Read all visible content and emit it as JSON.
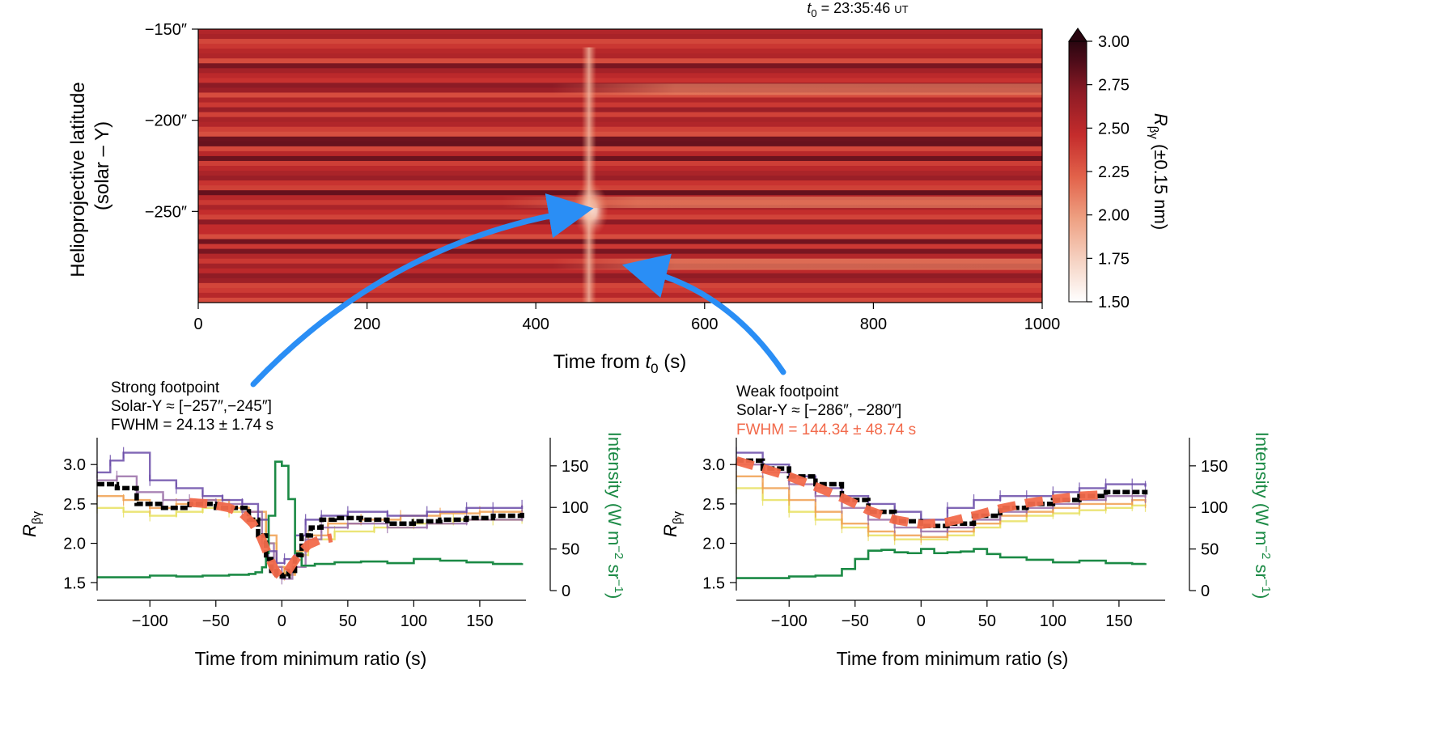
{
  "t0_label": {
    "prefix": "t",
    "sub": "0",
    "rest": " = 23:35:46 ",
    "ut": "UT"
  },
  "chart_data": [
    {
      "id": "heatmap",
      "type": "heatmap",
      "xlabel": {
        "main": "Time from ",
        "var": "t",
        "sub": "0",
        "unit": " (s)"
      },
      "ylabel": [
        "Helioprojective latitude",
        "(solar – Y)"
      ],
      "xlim": [
        0,
        1000
      ],
      "ylim": [
        -300,
        -150
      ],
      "xticks": [
        0,
        200,
        400,
        600,
        800,
        1000
      ],
      "xticklabels": [
        "0",
        "200",
        "400",
        "600",
        "800",
        "1000"
      ],
      "yticks": [
        -150,
        -200,
        -250
      ],
      "yticklabels": [
        "−150″",
        "−200″",
        "−250″"
      ],
      "colorbar": {
        "label": {
          "main": "R",
          "sub": "βγ",
          "rest": " (±0.15 nm)"
        },
        "range": [
          1.5,
          3.0
        ],
        "ticks": [
          3.0,
          2.75,
          2.5,
          2.25,
          2.0,
          1.75,
          1.5
        ],
        "ticklabels": [
          "3.00",
          "2.75",
          "2.50",
          "2.25",
          "2.00",
          "1.75",
          "1.50"
        ],
        "colors": [
          "#ffffff",
          "#f6d5c6",
          "#eea082",
          "#e2624a",
          "#c42c2c",
          "#8e1b25",
          "#4a0b18",
          "#2a0610"
        ]
      },
      "background_value": 2.55,
      "features": [
        {
          "name": "strong-footpoint-core",
          "t": 465,
          "y": -249,
          "value": 1.5
        },
        {
          "name": "bright-band-upper",
          "t_range": [
            420,
            1000
          ],
          "y": -183,
          "value": 2.0
        },
        {
          "name": "bright-band-mid",
          "t_range": [
            360,
            1000
          ],
          "y": -245,
          "value": 2.05
        },
        {
          "name": "bright-band-lower",
          "t_range": [
            420,
            1000
          ],
          "y": -279,
          "value": 2.1
        },
        {
          "name": "vertical-flash",
          "t": 463,
          "y_range": [
            -300,
            -160
          ],
          "value": 2.1
        }
      ]
    },
    {
      "id": "strong",
      "type": "line",
      "title": [
        "Strong footpoint",
        "Solar-Y ≈ [−257″,−245″]",
        "FWHM = 24.13 ± 1.74 s"
      ],
      "title_colors": [
        "#111111",
        "#111111",
        "#111111"
      ],
      "xlabel": "Time from minimum ratio (s)",
      "ylabel": {
        "main": "R",
        "sub": "βγ"
      },
      "y2label": {
        "main": "Intensity (W m",
        "sup1": "−2",
        "mid": " sr",
        "sup2": "−1",
        "end": ")"
      },
      "xlim": [
        -140,
        185
      ],
      "ylim": [
        1.4,
        3.3
      ],
      "y2lim": [
        0,
        180
      ],
      "xticks": [
        -100,
        -50,
        0,
        50,
        100,
        150
      ],
      "xticklabels": [
        "−100",
        "−50",
        "0",
        "50",
        "100",
        "150"
      ],
      "yticks": [
        1.5,
        2.0,
        2.5,
        3.0
      ],
      "yticklabels": [
        "1.5",
        "2.0",
        "2.5",
        "3.0"
      ],
      "y2ticks": [
        0,
        50,
        100,
        150
      ],
      "y2ticklabels": [
        "0",
        "50",
        "100",
        "150"
      ],
      "series": [
        {
          "name": "mean-ratio",
          "role": "ratio",
          "color": "#000000",
          "x": [
            -140,
            -125,
            -110,
            -90,
            -70,
            -50,
            -35,
            -25,
            -18,
            -12,
            -8,
            -4,
            0,
            5,
            10,
            15,
            22,
            30,
            40,
            60,
            80,
            100,
            120,
            140,
            160,
            182
          ],
          "values": [
            2.75,
            2.7,
            2.5,
            2.45,
            2.5,
            2.45,
            2.45,
            2.3,
            2.1,
            1.8,
            1.65,
            1.6,
            1.58,
            1.65,
            1.85,
            2.1,
            2.2,
            2.3,
            2.32,
            2.3,
            2.25,
            2.28,
            2.3,
            2.32,
            2.35,
            2.4
          ]
        },
        {
          "name": "pixel-purple",
          "role": "ratio",
          "color": "#6a4ba8",
          "x": [
            -140,
            -130,
            -120,
            -100,
            -80,
            -60,
            -45,
            -30,
            -18,
            -10,
            -4,
            2,
            10,
            18,
            30,
            50,
            80,
            110,
            140,
            160,
            182
          ],
          "values": [
            2.9,
            3.05,
            3.15,
            2.8,
            2.7,
            2.6,
            2.55,
            2.5,
            2.3,
            1.9,
            1.75,
            1.8,
            2.1,
            2.3,
            2.35,
            2.4,
            2.35,
            2.4,
            2.45,
            2.45,
            2.48
          ]
        },
        {
          "name": "pixel-violet",
          "role": "ratio",
          "color": "#9a6fa8",
          "x": [
            -140,
            -125,
            -110,
            -90,
            -70,
            -50,
            -30,
            -15,
            -6,
            0,
            8,
            18,
            30,
            50,
            80,
            110,
            140,
            182
          ],
          "values": [
            2.8,
            2.85,
            2.65,
            2.55,
            2.55,
            2.5,
            2.4,
            2.0,
            1.7,
            1.55,
            1.7,
            2.05,
            2.2,
            2.25,
            2.2,
            2.25,
            2.3,
            2.35
          ]
        },
        {
          "name": "pixel-orange",
          "role": "ratio",
          "color": "#f0a050",
          "x": [
            -140,
            -120,
            -100,
            -80,
            -60,
            -40,
            -25,
            -12,
            -4,
            2,
            10,
            20,
            35,
            60,
            90,
            120,
            150,
            182
          ],
          "values": [
            2.6,
            2.55,
            2.45,
            2.5,
            2.55,
            2.45,
            2.4,
            2.1,
            1.7,
            1.6,
            1.9,
            2.1,
            2.25,
            2.3,
            2.35,
            2.38,
            2.4,
            2.42
          ]
        },
        {
          "name": "pixel-yellow",
          "role": "ratio",
          "color": "#e8e060",
          "x": [
            -140,
            -120,
            -100,
            -80,
            -60,
            -40,
            -25,
            -12,
            -4,
            2,
            10,
            20,
            40,
            70,
            100,
            130,
            160,
            182
          ],
          "values": [
            2.45,
            2.4,
            2.35,
            2.4,
            2.45,
            2.4,
            2.3,
            2.0,
            1.7,
            1.62,
            1.85,
            2.05,
            2.15,
            2.2,
            2.25,
            2.3,
            2.3,
            2.32
          ]
        },
        {
          "name": "gaussian-fit",
          "role": "fit",
          "color": "#f26a4b",
          "x": [
            -70,
            -55,
            -40,
            -30,
            -22,
            -16,
            -11,
            -7,
            -4,
            -1,
            2,
            5,
            9,
            14,
            20,
            28,
            38
          ],
          "values": [
            2.52,
            2.5,
            2.45,
            2.38,
            2.25,
            2.08,
            1.88,
            1.72,
            1.63,
            1.58,
            1.6,
            1.66,
            1.76,
            1.88,
            1.98,
            2.04,
            2.07
          ]
        },
        {
          "name": "intensity",
          "role": "intensity",
          "color": "#1b8a45",
          "x": [
            -140,
            -120,
            -100,
            -80,
            -60,
            -40,
            -25,
            -20,
            -15,
            -12,
            -10,
            -5,
            0,
            5,
            10,
            15,
            25,
            40,
            60,
            80,
            100,
            120,
            140,
            160,
            182
          ],
          "values": [
            16,
            16,
            18,
            17,
            18,
            19,
            20,
            22,
            28,
            45,
            90,
            155,
            150,
            110,
            45,
            30,
            32,
            34,
            35,
            33,
            38,
            36,
            34,
            32,
            33
          ]
        }
      ]
    },
    {
      "id": "weak",
      "type": "line",
      "title": [
        "Weak footpoint",
        "Solar-Y ≈ [−286″, −280″]",
        "FWHM = 144.34 ± 48.74 s"
      ],
      "title_colors": [
        "#111111",
        "#111111",
        "#f26a4b"
      ],
      "xlabel": "Time from minimum ratio (s)",
      "ylabel": {
        "main": "R",
        "sub": "βγ"
      },
      "y2label": {
        "main": "Intensity (W m",
        "sup1": "−2",
        "mid": " sr",
        "sup2": "−1",
        "end": ")"
      },
      "xlim": [
        -140,
        185
      ],
      "ylim": [
        1.4,
        3.3
      ],
      "y2lim": [
        0,
        180
      ],
      "xticks": [
        -100,
        -50,
        0,
        50,
        100,
        150
      ],
      "xticklabels": [
        "−100",
        "−50",
        "0",
        "50",
        "100",
        "150"
      ],
      "yticks": [
        1.5,
        2.0,
        2.5,
        3.0
      ],
      "yticklabels": [
        "1.5",
        "2.0",
        "2.5",
        "3.0"
      ],
      "y2ticks": [
        0,
        50,
        100,
        150
      ],
      "y2ticklabels": [
        "0",
        "50",
        "100",
        "150"
      ],
      "series": [
        {
          "name": "mean-ratio",
          "role": "ratio",
          "color": "#000000",
          "x": [
            -140,
            -120,
            -100,
            -80,
            -60,
            -40,
            -20,
            0,
            20,
            40,
            60,
            80,
            100,
            120,
            140,
            160,
            170
          ],
          "values": [
            3.05,
            2.95,
            2.85,
            2.75,
            2.55,
            2.4,
            2.28,
            2.22,
            2.25,
            2.35,
            2.45,
            2.5,
            2.55,
            2.6,
            2.65,
            2.65,
            2.62
          ]
        },
        {
          "name": "pixel-purple",
          "role": "ratio",
          "color": "#6a4ba8",
          "x": [
            -140,
            -120,
            -100,
            -80,
            -60,
            -40,
            -20,
            0,
            20,
            40,
            60,
            80,
            100,
            120,
            140,
            160,
            170
          ],
          "values": [
            3.15,
            3.0,
            2.85,
            2.7,
            2.6,
            2.5,
            2.4,
            2.3,
            2.45,
            2.55,
            2.6,
            2.6,
            2.65,
            2.7,
            2.75,
            2.75,
            2.72
          ]
        },
        {
          "name": "pixel-violet",
          "role": "ratio",
          "color": "#9a6fa8",
          "x": [
            -140,
            -120,
            -100,
            -80,
            -60,
            -40,
            -20,
            0,
            20,
            40,
            60,
            80,
            100,
            120,
            140,
            160,
            170
          ],
          "values": [
            3.0,
            2.9,
            2.75,
            2.6,
            2.45,
            2.3,
            2.2,
            2.15,
            2.2,
            2.3,
            2.4,
            2.45,
            2.5,
            2.55,
            2.6,
            2.6,
            2.58
          ]
        },
        {
          "name": "pixel-orange",
          "role": "ratio",
          "color": "#f0a050",
          "x": [
            -140,
            -120,
            -100,
            -80,
            -60,
            -40,
            -20,
            0,
            20,
            40,
            60,
            80,
            100,
            120,
            140,
            160,
            170
          ],
          "values": [
            2.85,
            2.7,
            2.55,
            2.4,
            2.25,
            2.15,
            2.1,
            2.08,
            2.15,
            2.25,
            2.35,
            2.4,
            2.45,
            2.5,
            2.5,
            2.55,
            2.52
          ]
        },
        {
          "name": "pixel-yellow",
          "role": "ratio",
          "color": "#e8e060",
          "x": [
            -140,
            -120,
            -100,
            -80,
            -60,
            -40,
            -20,
            0,
            20,
            40,
            60,
            80,
            100,
            120,
            140,
            160,
            170
          ],
          "values": [
            2.7,
            2.55,
            2.4,
            2.3,
            2.2,
            2.1,
            2.05,
            2.05,
            2.1,
            2.2,
            2.28,
            2.35,
            2.38,
            2.42,
            2.45,
            2.48,
            2.47
          ]
        },
        {
          "name": "gaussian-fit",
          "role": "fit",
          "color": "#f26a4b",
          "x": [
            -140,
            -120,
            -100,
            -80,
            -60,
            -40,
            -20,
            0,
            20,
            40,
            60,
            80,
            100,
            120,
            140
          ],
          "values": [
            3.05,
            2.95,
            2.85,
            2.72,
            2.58,
            2.42,
            2.3,
            2.24,
            2.27,
            2.35,
            2.44,
            2.51,
            2.56,
            2.6,
            2.62
          ]
        },
        {
          "name": "intensity",
          "role": "intensity",
          "color": "#1b8a45",
          "x": [
            -140,
            -120,
            -100,
            -80,
            -60,
            -50,
            -40,
            -30,
            -20,
            -10,
            0,
            10,
            20,
            30,
            40,
            50,
            60,
            80,
            100,
            120,
            140,
            160,
            170
          ],
          "values": [
            15,
            15,
            17,
            18,
            26,
            38,
            48,
            49,
            46,
            45,
            50,
            45,
            46,
            47,
            50,
            44,
            40,
            37,
            34,
            36,
            33,
            32,
            33
          ]
        }
      ]
    }
  ]
}
